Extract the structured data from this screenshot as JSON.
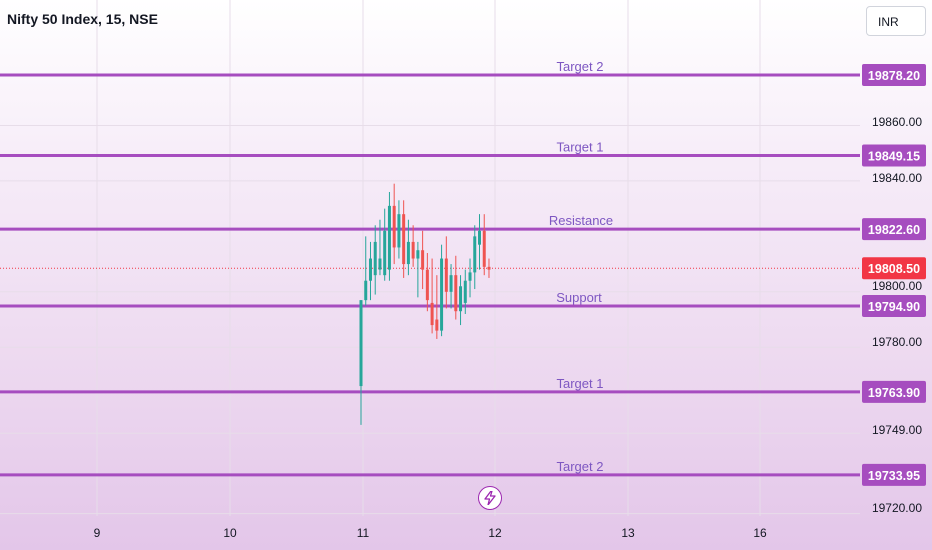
{
  "header": {
    "symbol": "Nifty 50 Index, 15, NSE",
    "currency": "INR"
  },
  "colors": {
    "up": "#26a69a",
    "down": "#ef5350",
    "level": "#a64dbf",
    "level_text": "#7e57c2",
    "price_line": "#f23645"
  },
  "icons": {
    "bolt": "lightning-bolt-icon"
  },
  "chart_data": {
    "type": "candlestick",
    "title": "Nifty 50 Index, 15, NSE",
    "x_ticks": [
      "9",
      "10",
      "11",
      "12",
      "13",
      "16"
    ],
    "y_ticks": [
      "19860.00",
      "19840.00",
      "19800.00",
      "19780.00",
      "19749.00",
      "19720.00"
    ],
    "y_range": [
      19716,
      19890
    ],
    "current_price": "19808.50",
    "levels": [
      {
        "label": "Target 2",
        "value": "19878.20"
      },
      {
        "label": "Target 1",
        "value": "19849.15"
      },
      {
        "label": "Resistance",
        "value": "19822.60"
      },
      {
        "label": "Support",
        "value": "19794.90"
      },
      {
        "label": "Target 1",
        "value": "19763.90"
      },
      {
        "label": "Target 2",
        "value": "19733.95"
      }
    ],
    "candles": [
      {
        "o": 19766,
        "h": 19797,
        "l": 19752,
        "c": 19797
      },
      {
        "o": 19797,
        "h": 19820,
        "l": 19795,
        "c": 19804
      },
      {
        "o": 19804,
        "h": 19818,
        "l": 19797,
        "c": 19812
      },
      {
        "o": 19806,
        "h": 19824,
        "l": 19799,
        "c": 19818
      },
      {
        "o": 19808,
        "h": 19826,
        "l": 19806,
        "c": 19812
      },
      {
        "o": 19806,
        "h": 19830,
        "l": 19804,
        "c": 19822
      },
      {
        "o": 19808,
        "h": 19836,
        "l": 19804,
        "c": 19831
      },
      {
        "o": 19831,
        "h": 19839,
        "l": 19810,
        "c": 19816
      },
      {
        "o": 19816,
        "h": 19833,
        "l": 19812,
        "c": 19828
      },
      {
        "o": 19828,
        "h": 19833,
        "l": 19805,
        "c": 19810
      },
      {
        "o": 19810,
        "h": 19826,
        "l": 19806,
        "c": 19818
      },
      {
        "o": 19818,
        "h": 19824,
        "l": 19809,
        "c": 19812
      },
      {
        "o": 19812,
        "h": 19818,
        "l": 19798,
        "c": 19815
      },
      {
        "o": 19815,
        "h": 19822,
        "l": 19801,
        "c": 19808
      },
      {
        "o": 19808,
        "h": 19814,
        "l": 19793,
        "c": 19797
      },
      {
        "o": 19796,
        "h": 19812,
        "l": 19785,
        "c": 19788
      },
      {
        "o": 19790,
        "h": 19806,
        "l": 19783,
        "c": 19786
      },
      {
        "o": 19786,
        "h": 19817,
        "l": 19784,
        "c": 19812
      },
      {
        "o": 19812,
        "h": 19820,
        "l": 19794,
        "c": 19800
      },
      {
        "o": 19800,
        "h": 19810,
        "l": 19794,
        "c": 19806
      },
      {
        "o": 19806,
        "h": 19813,
        "l": 19790,
        "c": 19793
      },
      {
        "o": 19793,
        "h": 19806,
        "l": 19788,
        "c": 19802
      },
      {
        "o": 19796,
        "h": 19808,
        "l": 19792,
        "c": 19804
      },
      {
        "o": 19804,
        "h": 19812,
        "l": 19798,
        "c": 19807
      },
      {
        "o": 19807,
        "h": 19824,
        "l": 19801,
        "c": 19820
      },
      {
        "o": 19817,
        "h": 19828,
        "l": 19808,
        "c": 19822
      },
      {
        "o": 19822,
        "h": 19828,
        "l": 19806,
        "c": 19809
      },
      {
        "o": 19809,
        "h": 19812,
        "l": 19805,
        "c": 19808
      }
    ]
  }
}
